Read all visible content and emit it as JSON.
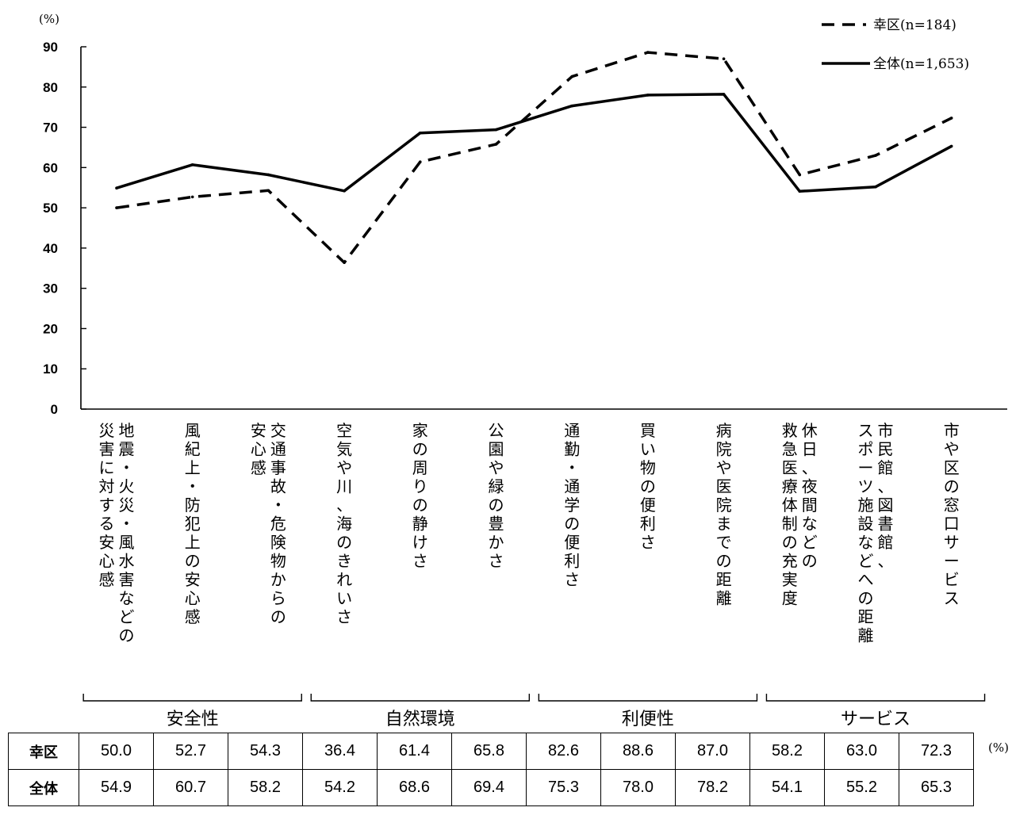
{
  "chart_data": {
    "type": "line",
    "y_unit": "(%)",
    "ylim": [
      0,
      90
    ],
    "yticks": [
      0,
      10,
      20,
      30,
      40,
      50,
      60,
      70,
      80,
      90
    ],
    "categories": [
      "地震・火災・風水害などの災害に対する安心感",
      "風紀上・防犯上の安心感",
      "交通事故・危険物からの安心感",
      "空気や川、海のきれいさ",
      "家の周りの静けさ",
      "公園や緑の豊かさ",
      "通勤・通学の便利さ",
      "買い物の便利さ",
      "病院や医院までの距離",
      "休日、夜間などの救急医療体制の充実度",
      "市民館、図書館、スポーツ施設などへの距離",
      "市や区の窓口サービス"
    ],
    "category_columns": [
      [
        "地震・火災・風水害などの",
        "災害に対する安心感"
      ],
      [
        "風紀上・防犯上の安心感"
      ],
      [
        "交通事故・危険物からの",
        "安心感"
      ],
      [
        "空気や川、海のきれいさ"
      ],
      [
        "家の周りの静けさ"
      ],
      [
        "公園や緑の豊かさ"
      ],
      [
        "通勤・通学の便利さ"
      ],
      [
        "買い物の便利さ"
      ],
      [
        "病院や医院までの距離"
      ],
      [
        "休日、夜間などの",
        "救急医療体制の充実度"
      ],
      [
        "市民館、図書館、",
        "スポーツ施設などへの距離"
      ],
      [
        "市や区の窓口サービス"
      ]
    ],
    "groups": [
      {
        "label": "安全性",
        "span": [
          0,
          2
        ]
      },
      {
        "label": "自然環境",
        "span": [
          3,
          5
        ]
      },
      {
        "label": "利便性",
        "span": [
          6,
          8
        ]
      },
      {
        "label": "サービス",
        "span": [
          9,
          11
        ]
      }
    ],
    "series": [
      {
        "name": "幸区(n=184)",
        "style": "dashed",
        "color": "#000000",
        "values": [
          50.0,
          52.7,
          54.3,
          36.4,
          61.4,
          65.8,
          82.6,
          88.6,
          87.0,
          58.2,
          63.0,
          72.3
        ]
      },
      {
        "name": "全体(n=1,653)",
        "style": "solid",
        "color": "#000000",
        "values": [
          54.9,
          60.7,
          58.2,
          54.2,
          68.6,
          69.4,
          75.3,
          78.0,
          78.2,
          54.1,
          55.2,
          65.3
        ]
      }
    ],
    "grid": false,
    "legend": "top-right"
  },
  "table": {
    "rows": [
      {
        "label": "幸区",
        "values": [
          "50.0",
          "52.7",
          "54.3",
          "36.4",
          "61.4",
          "65.8",
          "82.6",
          "88.6",
          "87.0",
          "58.2",
          "63.0",
          "72.3"
        ]
      },
      {
        "label": "全体",
        "values": [
          "54.9",
          "60.7",
          "58.2",
          "54.2",
          "68.6",
          "69.4",
          "75.3",
          "78.0",
          "78.2",
          "54.1",
          "55.2",
          "65.3"
        ]
      }
    ],
    "unit": "(%)"
  }
}
